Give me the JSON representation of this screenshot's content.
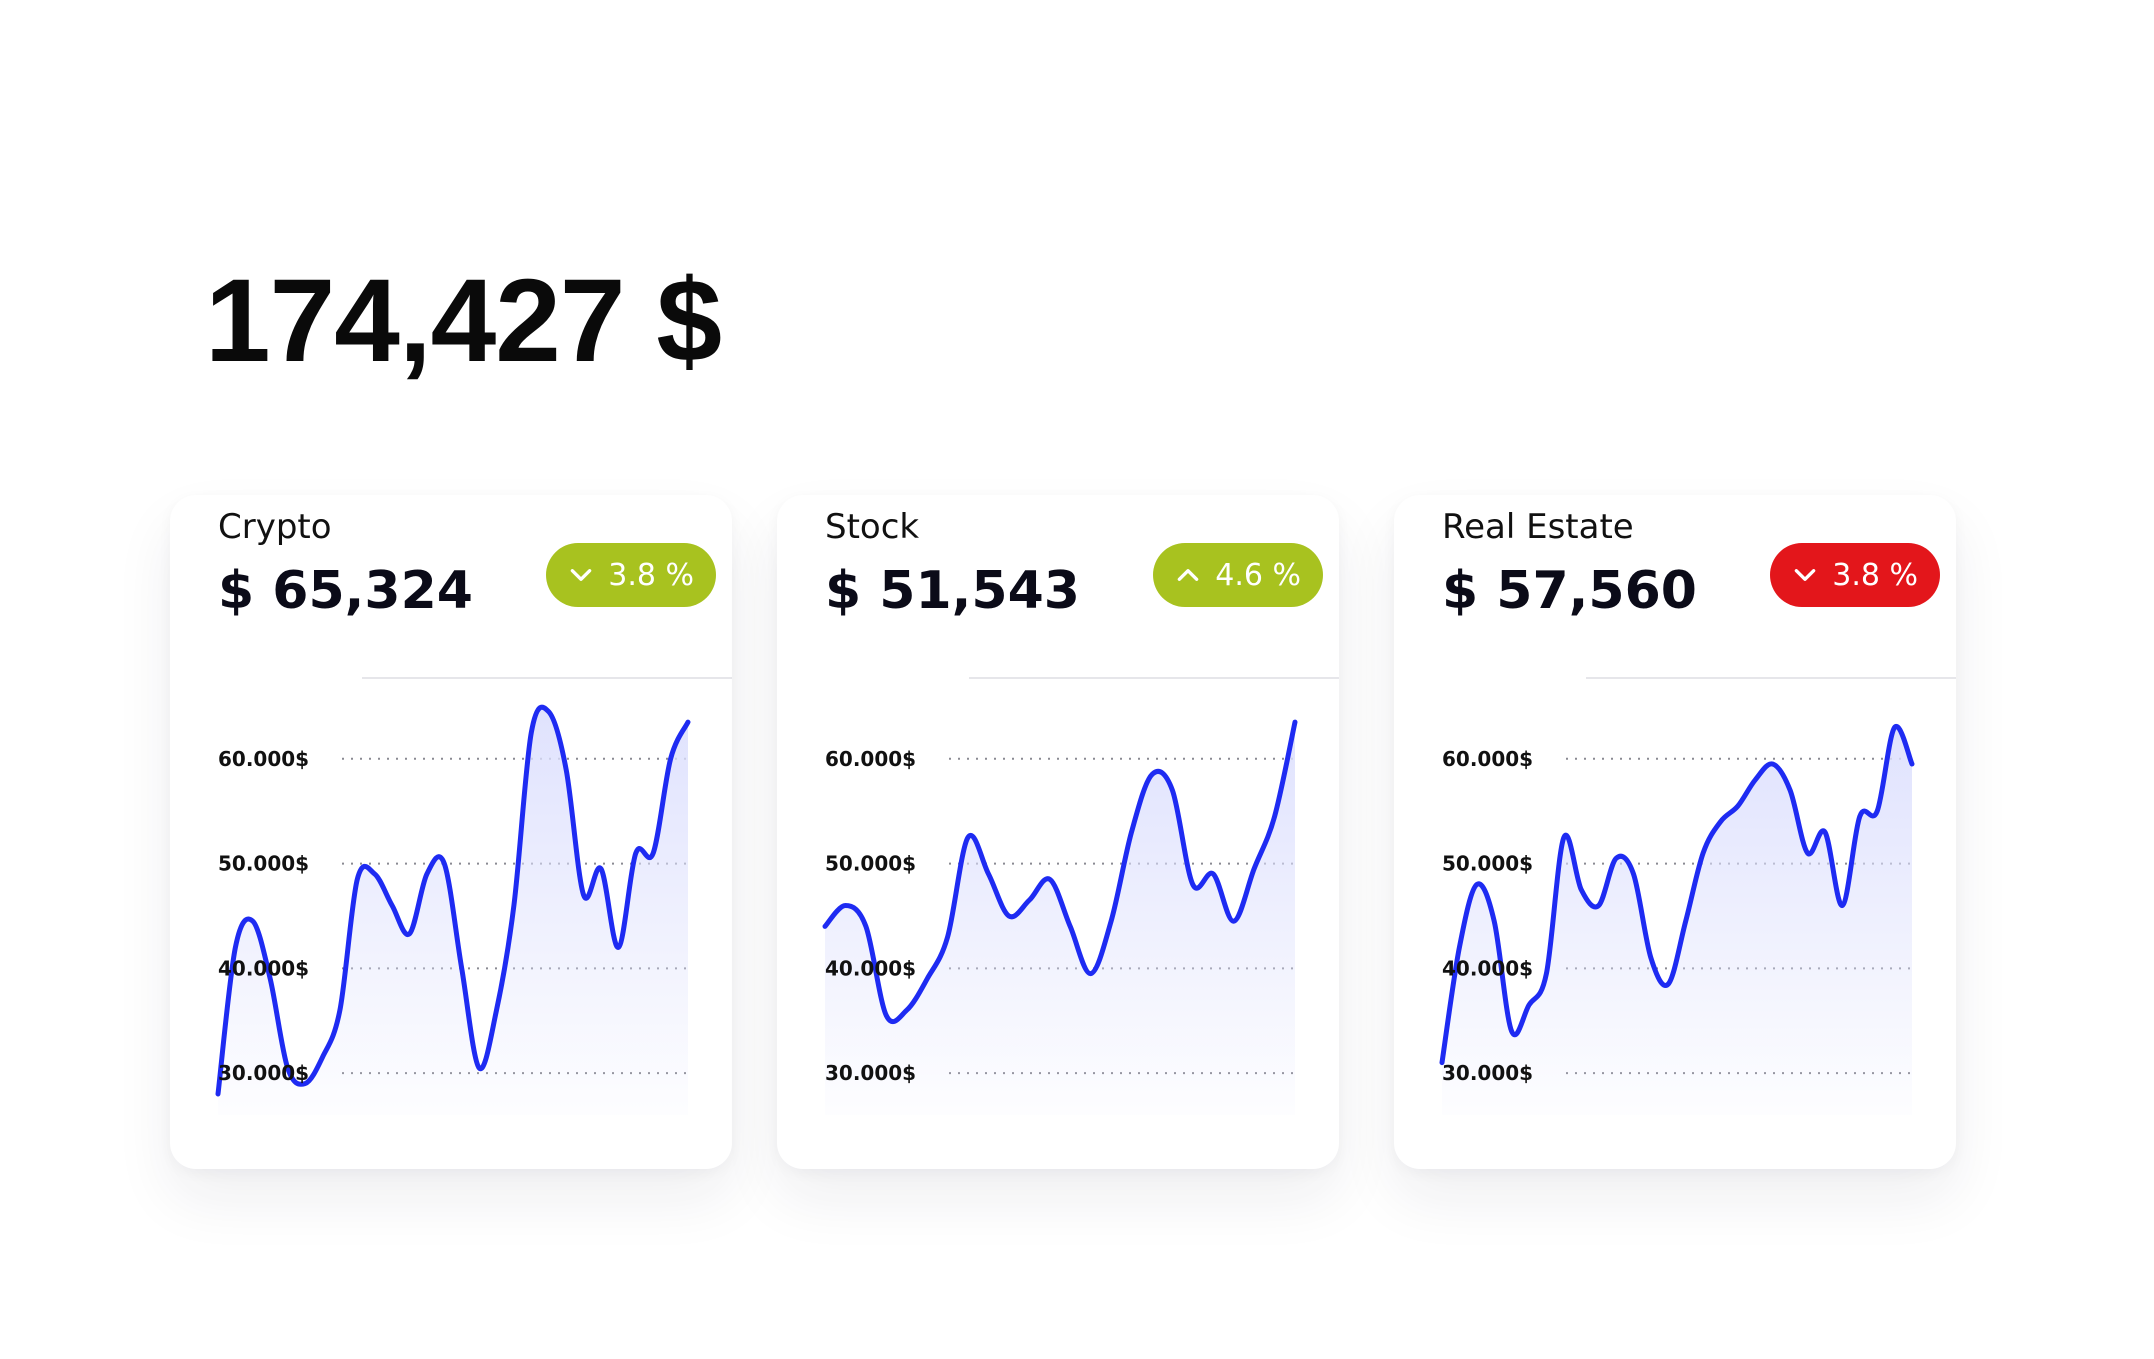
{
  "header": {
    "total": "174,427 $"
  },
  "colors": {
    "line": "#1e2bf2",
    "badge_up": "#a8c21f",
    "badge_down_green": "#a8c21f",
    "badge_down_red": "#e3161b",
    "fill_top": "#dcdffd"
  },
  "cards": [
    {
      "label": "Crypto",
      "value": "$ 65,324",
      "change": {
        "text": "3.8 %",
        "direction": "down",
        "color": "#a8c21f",
        "icon": "chevron-down-icon"
      }
    },
    {
      "label": "Stock",
      "value": "$ 51,543",
      "change": {
        "text": "4.6 %",
        "direction": "up",
        "color": "#a8c21f",
        "icon": "chevron-up-icon"
      }
    },
    {
      "label": "Real Estate",
      "value": "$ 57,560",
      "change": {
        "text": "3.8 %",
        "direction": "down",
        "color": "#e3161b",
        "icon": "chevron-down-icon"
      }
    }
  ],
  "chart_data": [
    {
      "type": "area",
      "series_of": "Crypto",
      "ylim": [
        26000,
        68000
      ],
      "yticks": [
        30000,
        40000,
        50000,
        60000
      ],
      "ytick_labels": [
        "30.000$",
        "40.000$",
        "50.000$",
        "60.000$"
      ],
      "grid": "dotted horizontal",
      "values": [
        28000,
        42000,
        44500,
        39000,
        30500,
        29000,
        31500,
        36000,
        48500,
        49000,
        46000,
        43300,
        49000,
        50000,
        40000,
        30500,
        36000,
        46000,
        62500,
        64500,
        59000,
        47000,
        49500,
        42000,
        51000,
        51000,
        60000,
        63500
      ]
    },
    {
      "type": "area",
      "series_of": "Stock",
      "ylim": [
        26000,
        68000
      ],
      "yticks": [
        30000,
        40000,
        50000,
        60000
      ],
      "ytick_labels": [
        "30.000$",
        "40.000$",
        "50.000$",
        "60.000$"
      ],
      "grid": "dotted horizontal",
      "values": [
        44000,
        46000,
        44000,
        35500,
        36000,
        39000,
        43000,
        52500,
        49000,
        45000,
        46500,
        48500,
        44000,
        39500,
        44500,
        53000,
        58500,
        57000,
        48000,
        49000,
        44500,
        49500,
        54500,
        63500
      ]
    },
    {
      "type": "area",
      "series_of": "Real Estate",
      "ylim": [
        26000,
        68000
      ],
      "yticks": [
        30000,
        40000,
        50000,
        60000
      ],
      "ytick_labels": [
        "30.000$",
        "40.000$",
        "50.000$",
        "60.000$"
      ],
      "grid": "dotted horizontal",
      "values": [
        31000,
        42000,
        48000,
        44500,
        34000,
        36500,
        39500,
        52500,
        47500,
        46000,
        50500,
        49000,
        41000,
        38500,
        44500,
        51000,
        54000,
        55500,
        58000,
        59500,
        57000,
        51000,
        53000,
        46000,
        54500,
        55000,
        63000,
        59500
      ]
    }
  ]
}
